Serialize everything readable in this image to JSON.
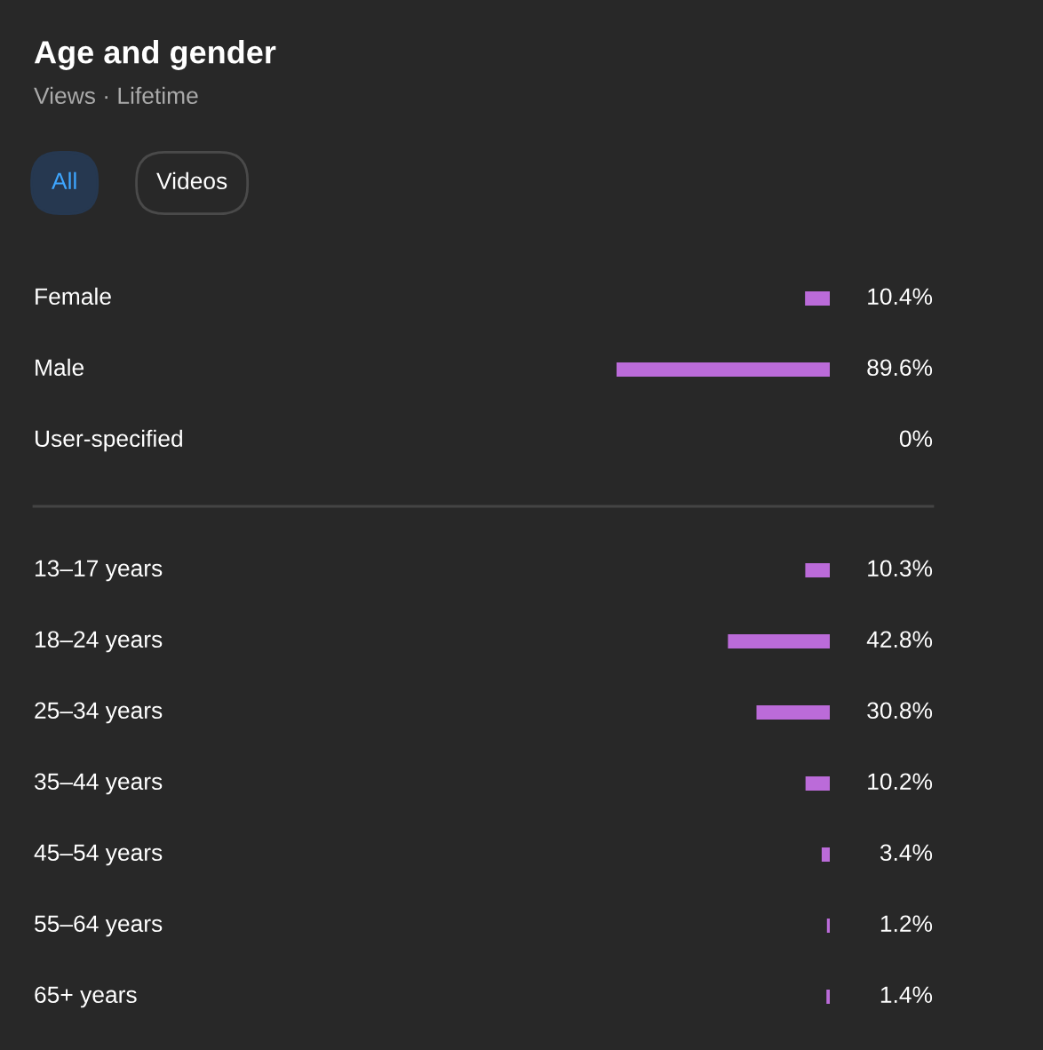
{
  "chart_data": [
    {
      "type": "other",
      "title": "Age and gender",
      "subtitle": "Views · Lifetime",
      "annotations": [
        "All",
        "Videos"
      ]
    },
    {
      "type": "bar",
      "orientation": "horizontal",
      "color": "#bb6bd9",
      "categories": [
        "Female",
        "Male",
        "User-specified"
      ],
      "values": [
        10.4,
        89.6,
        0
      ],
      "value_labels": [
        "10.4%",
        "89.6%",
        "0%"
      ]
    },
    {
      "type": "bar",
      "orientation": "horizontal",
      "color": "#bb6bd9",
      "categories": [
        "13–17 years",
        "18–24 years",
        "25–34 years",
        "35–44 years",
        "45–54 years",
        "55–64 years",
        "65+ years"
      ],
      "values": [
        10.3,
        42.8,
        30.8,
        10.2,
        3.4,
        1.2,
        1.4
      ],
      "value_labels": [
        "10.3%",
        "42.8%",
        "30.8%",
        "10.2%",
        "3.4%",
        "1.2%",
        "1.4%"
      ]
    }
  ]
}
